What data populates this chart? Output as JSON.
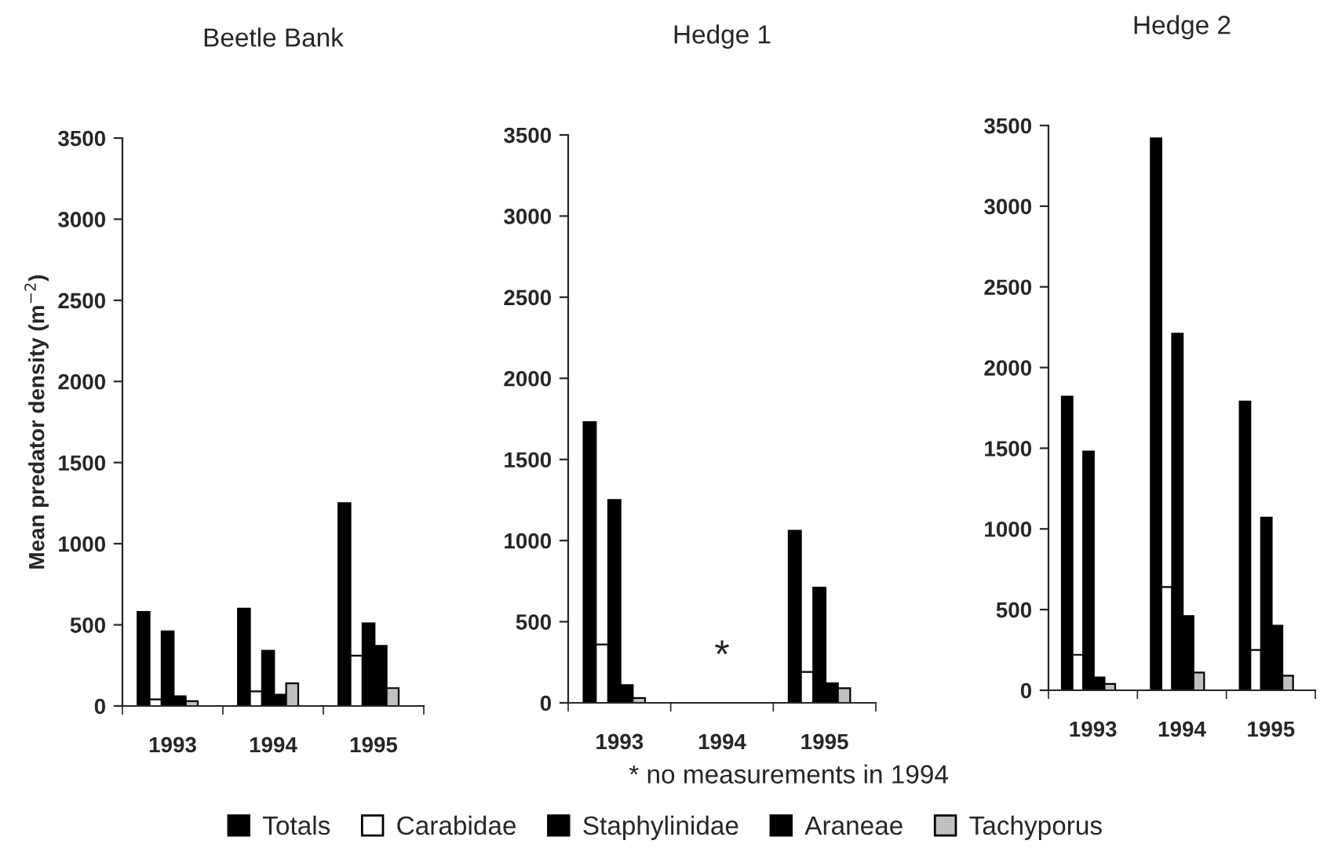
{
  "chart_data": [
    {
      "type": "bar",
      "title": "Beetle Bank",
      "ylabel": "Mean predator density (m$^{−2}$)",
      "categories": [
        "1993",
        "1994",
        "1995"
      ],
      "ylim": [
        0,
        3500
      ],
      "yticks": [
        0,
        500,
        1000,
        1500,
        2000,
        2500,
        3000,
        3500
      ],
      "legend": "bottom",
      "series": [
        {
          "name": "Totals",
          "color": "#000000",
          "values": [
            580,
            600,
            1250
          ]
        },
        {
          "name": "Carabidae",
          "color": "#ffffff",
          "values": [
            40,
            90,
            310
          ]
        },
        {
          "name": "Staphylinidae",
          "color": "#000000",
          "values": [
            460,
            340,
            510
          ]
        },
        {
          "name": "Araneae",
          "color": "#000000",
          "values": [
            60,
            70,
            370
          ]
        },
        {
          "name": "Tachyporus",
          "color": "#c0c0c0",
          "values": [
            30,
            140,
            110
          ]
        }
      ]
    },
    {
      "type": "bar",
      "title": "Hedge 1",
      "categories": [
        "1993",
        "1994",
        "1995"
      ],
      "ylim": [
        0,
        3500
      ],
      "yticks": [
        0,
        500,
        1000,
        1500,
        2000,
        2500,
        3000,
        3500
      ],
      "annotations": [
        "*",
        "* no measurements in 1994"
      ],
      "series": [
        {
          "color": "#000000",
          "values": [
            1730,
            null,
            1060
          ]
        },
        {
          "color": "#ffffff",
          "values": [
            360,
            null,
            190
          ]
        },
        {
          "color": "#000000",
          "values": [
            1250,
            null,
            710
          ]
        },
        {
          "color": "#000000",
          "values": [
            110,
            null,
            120
          ]
        },
        {
          "color": "#c0c0c0",
          "values": [
            30,
            null,
            90
          ]
        }
      ]
    },
    {
      "type": "bar",
      "title": "Hedge 2",
      "categories": [
        "1993",
        "1994",
        "1995"
      ],
      "ylim": [
        0,
        3500
      ],
      "yticks": [
        0,
        500,
        1000,
        1500,
        2000,
        2500,
        3000,
        3500
      ],
      "series": [
        {
          "color": "#000000",
          "values": [
            1820,
            3420,
            1790
          ]
        },
        {
          "color": "#ffffff",
          "values": [
            220,
            640,
            250
          ]
        },
        {
          "color": "#000000",
          "values": [
            1480,
            2210,
            1070
          ]
        },
        {
          "color": "#000000",
          "values": [
            80,
            460,
            400
          ]
        },
        {
          "color": "#c0c0c0",
          "values": [
            40,
            110,
            90
          ]
        }
      ]
    }
  ]
}
